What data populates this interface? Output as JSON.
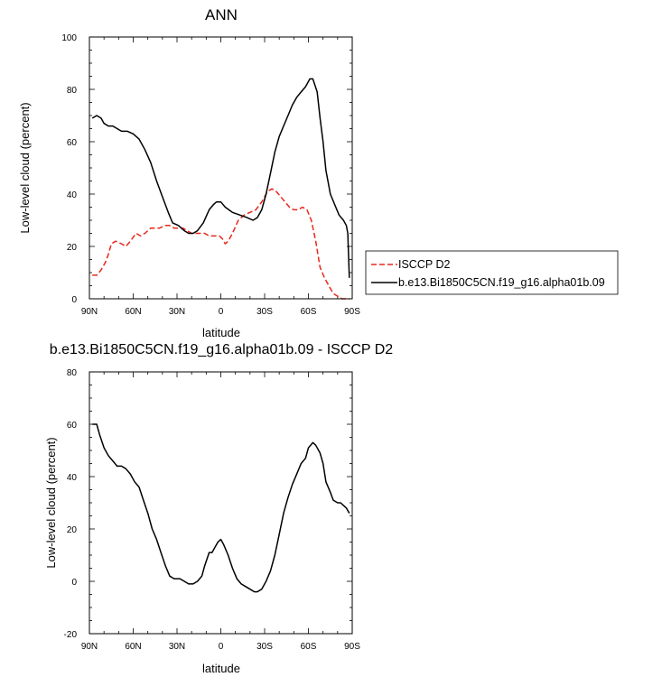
{
  "chart_data": [
    {
      "type": "line",
      "title": "ANN",
      "xlabel": "latitude",
      "ylabel": "Low-level cloud (percent)",
      "xlim": [
        90,
        -90
      ],
      "ylim": [
        0,
        100
      ],
      "x_ticks": [
        90,
        60,
        30,
        0,
        -30,
        -60,
        -90
      ],
      "x_tick_labels": [
        "90N",
        "60N",
        "30N",
        "0",
        "30S",
        "60S",
        "90S"
      ],
      "y_ticks": [
        0,
        20,
        40,
        60,
        80,
        100
      ],
      "y_tick_labels": [
        "0",
        "20",
        "40",
        "60",
        "80",
        "100"
      ],
      "legend_position": "right",
      "series": [
        {
          "name": "ISCCP D2",
          "color": "#e8281c",
          "dash": true,
          "x": [
            88,
            85,
            82,
            79,
            77,
            75,
            72,
            68,
            65,
            62,
            58,
            55,
            52,
            48,
            45,
            42,
            38,
            35,
            32,
            29,
            26,
            23,
            20,
            17,
            14,
            11,
            8,
            6,
            3,
            1,
            -1,
            -3,
            -5,
            -8,
            -12,
            -16,
            -20,
            -24,
            -28,
            -32,
            -35,
            -38,
            -41,
            -44,
            -47,
            -50,
            -53,
            -56,
            -59,
            -62,
            -65,
            -68,
            -71,
            -74,
            -77,
            -80,
            -83,
            -86,
            -88
          ],
          "y": [
            9,
            9,
            11,
            14,
            17,
            21,
            22,
            21,
            20,
            22,
            25,
            24,
            25,
            27,
            27,
            27,
            28,
            28,
            27,
            27,
            27,
            26,
            25,
            25,
            25,
            25,
            24,
            24,
            24,
            24,
            23,
            21,
            22,
            25,
            30,
            32,
            33,
            34,
            37,
            41,
            42,
            41,
            39,
            37,
            35,
            34,
            34,
            35,
            34,
            30,
            22,
            12,
            8,
            5,
            2,
            1,
            0,
            0,
            0
          ]
        },
        {
          "name": "b.e13.Bi1850C5CN.f19_g16.alpha01b.09",
          "color": "#000000",
          "dash": false,
          "x": [
            88,
            85,
            82,
            80,
            77,
            74,
            71,
            68,
            64,
            60,
            56,
            52,
            48,
            44,
            40,
            36,
            33,
            29,
            25,
            22,
            19,
            16,
            12,
            8,
            5,
            3,
            0,
            -3,
            -8,
            -13,
            -18,
            -22,
            -25,
            -28,
            -31,
            -34,
            -37,
            -40,
            -43,
            -46,
            -49,
            -52,
            -55,
            -58,
            -61,
            -63,
            -66,
            -68,
            -70,
            -72,
            -75,
            -78,
            -81,
            -84,
            -86,
            -87,
            -88
          ],
          "y": [
            69,
            70,
            69,
            67,
            66,
            66,
            65,
            64,
            64,
            63,
            61,
            57,
            52,
            45,
            39,
            33,
            29,
            28,
            26,
            25,
            25,
            26,
            29,
            34,
            36,
            37,
            37,
            35,
            33,
            32,
            31,
            30,
            31,
            34,
            40,
            48,
            56,
            62,
            66,
            70,
            74,
            77,
            79,
            81,
            84,
            84,
            79,
            69,
            60,
            49,
            40,
            36,
            32,
            30,
            28,
            25,
            8
          ]
        }
      ]
    },
    {
      "type": "line",
      "title": "b.e13.Bi1850C5CN.f19_g16.alpha01b.09 - ISCCP D2",
      "xlabel": "latitude",
      "ylabel": "Low-level cloud (percent)",
      "xlim": [
        90,
        -90
      ],
      "ylim": [
        -20,
        80
      ],
      "x_ticks": [
        90,
        60,
        30,
        0,
        -30,
        -60,
        -90
      ],
      "x_tick_labels": [
        "90N",
        "60N",
        "30N",
        "0",
        "30S",
        "60S",
        "90S"
      ],
      "y_ticks": [
        -20,
        0,
        20,
        40,
        60,
        80
      ],
      "y_tick_labels": [
        "-20",
        "0",
        "20",
        "40",
        "60",
        "80"
      ],
      "series": [
        {
          "color": "#000000",
          "dash": false,
          "x": [
            88,
            85,
            83,
            80,
            77,
            74,
            71,
            68,
            65,
            62,
            59,
            56,
            53,
            50,
            47,
            44,
            41,
            38,
            35,
            32,
            30,
            28,
            25,
            22,
            19,
            16,
            13,
            11,
            8,
            6,
            4,
            2,
            0,
            -2,
            -5,
            -8,
            -11,
            -14,
            -17,
            -20,
            -23,
            -25,
            -28,
            -31,
            -34,
            -37,
            -40,
            -43,
            -46,
            -49,
            -52,
            -55,
            -58,
            -60,
            -63,
            -65,
            -68,
            -70,
            -72,
            -75,
            -77,
            -80,
            -82,
            -84,
            -86,
            -88
          ],
          "y": [
            60,
            60,
            56,
            51,
            48,
            46,
            44,
            44,
            43,
            41,
            38,
            36,
            31,
            26,
            20,
            16,
            11,
            6,
            2,
            1,
            1,
            1,
            0,
            -1,
            -1,
            0,
            2,
            6,
            11,
            11,
            13,
            15,
            16,
            14,
            10,
            5,
            1,
            -1,
            -2,
            -3,
            -4,
            -4,
            -3,
            0,
            4,
            10,
            18,
            26,
            32,
            37,
            41,
            45,
            47,
            51,
            53,
            52,
            49,
            45,
            38,
            34,
            31,
            30,
            30,
            29,
            28,
            26
          ]
        }
      ]
    }
  ]
}
